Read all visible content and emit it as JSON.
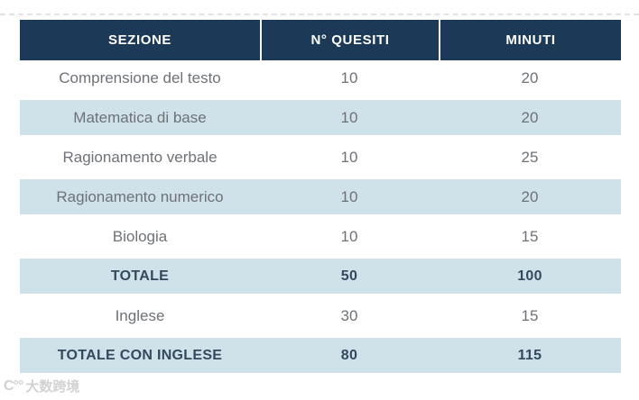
{
  "table": {
    "columns": [
      {
        "label": "SEZIONE"
      },
      {
        "label": "N° QUESITI"
      },
      {
        "label": "MINUTI"
      }
    ],
    "rows": [
      {
        "sezione": "Comprensione del testo",
        "quesiti": "10",
        "minuti": "20"
      },
      {
        "sezione": "Matematica di base",
        "quesiti": "10",
        "minuti": "20"
      },
      {
        "sezione": "Ragionamento verbale",
        "quesiti": "10",
        "minuti": "25"
      },
      {
        "sezione": "Ragionamento numerico",
        "quesiti": "10",
        "minuti": "20"
      },
      {
        "sezione": "Biologia",
        "quesiti": "10",
        "minuti": "15"
      },
      {
        "sezione": "TOTALE",
        "quesiti": "50",
        "minuti": "100"
      },
      {
        "sezione": "Inglese",
        "quesiti": "30",
        "minuti": "15"
      },
      {
        "sezione": "TOTALE CON INGLESE",
        "quesiti": "80",
        "minuti": "115"
      }
    ]
  },
  "colors": {
    "header_bg": "#1c3a57",
    "header_text": "#ffffff",
    "row_alt_bg": "#cfe1e9",
    "row_text": "#6e7277",
    "emphasis_text": "#32495f"
  },
  "watermark": {
    "logo": "C°°",
    "text": "大数跨境"
  }
}
